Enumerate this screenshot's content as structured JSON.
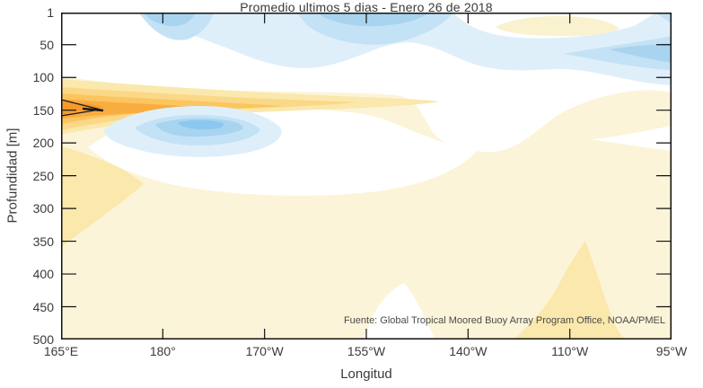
{
  "figure": {
    "title": "Promedio ultimos 5 dias - Enero 26 de 2018",
    "source_note": "Fuente: Global Tropical Moored Buoy Array Program Office, NOAA/PMEL"
  },
  "axes": {
    "x": {
      "label": "Longitud",
      "ticks": [
        "165°E",
        "180°",
        "170°W",
        "155°W",
        "140°W",
        "110°W",
        "95°W"
      ]
    },
    "y": {
      "label": "Profundidad [m]",
      "ticks": [
        1,
        50,
        100,
        150,
        200,
        250,
        300,
        350,
        400,
        450,
        500
      ]
    }
  },
  "palette": {
    "background": "#FFFFFF",
    "frame": "#111111",
    "contour_line": "#1a1a1a",
    "blue_1": "#DFEFFA",
    "blue_2": "#C4E2F5",
    "blue_3": "#A8D4F0",
    "blue_4": "#8CC7EE",
    "yellow_1": "#FCF4D8",
    "yellow_2": "#FAE8AC",
    "yellow_3": "#FBD887",
    "yellow_4": "#FBC55F",
    "yellow_5": "#F9AD40",
    "yellow_6": "#F79A2B",
    "yellow_lens": "#FAF2CF"
  },
  "chart_data": {
    "type": "heatmap",
    "title": "Promedio ultimos 5 dias - Enero 26 de 2018",
    "xlabel": "Longitud",
    "ylabel": "Profundidad [m]",
    "x": [
      "165°E",
      "180°",
      "170°W",
      "155°W",
      "140°W",
      "110°W",
      "95°W"
    ],
    "y_depths_m": [
      1,
      50,
      100,
      150,
      200,
      250,
      300,
      350,
      400,
      450,
      500
    ],
    "ylim": [
      1,
      500
    ],
    "grid": false,
    "legend": "none (no colorbar shown)",
    "values_note": "Filled contour anomaly section; no colorbar in figure, values are estimated relative contour levels (positive = yellow/orange, negative = blue). Strong positive core near 165°E at ~120-140 m (black contour), negative lens near 180-170°W at ~150-170 m, negative band near surface across 170°W-95°W.",
    "matrix_rows_by_depth": [
      [
        0,
        -1,
        -2,
        -2,
        -1,
        -1,
        -1
      ],
      [
        0,
        -1,
        -1,
        -2,
        -1,
        -1,
        -1
      ],
      [
        1,
        1,
        0,
        0,
        0,
        0,
        0
      ],
      [
        5,
        1,
        -2,
        0,
        1,
        1,
        0
      ],
      [
        1,
        1,
        0,
        1,
        1,
        1,
        1
      ],
      [
        2,
        1,
        1,
        1,
        1,
        1,
        1
      ],
      [
        1,
        1,
        1,
        1,
        1,
        1,
        1
      ],
      [
        1,
        1,
        1,
        1,
        1,
        2,
        1
      ],
      [
        1,
        1,
        1,
        1,
        1,
        2,
        1
      ],
      [
        1,
        1,
        1,
        0,
        1,
        2,
        1
      ],
      [
        1,
        1,
        1,
        0,
        1,
        2,
        1
      ]
    ],
    "annotations": [
      "Fuente: Global Tropical Moored Buoy Array Program Office, NOAA/PMEL"
    ]
  }
}
